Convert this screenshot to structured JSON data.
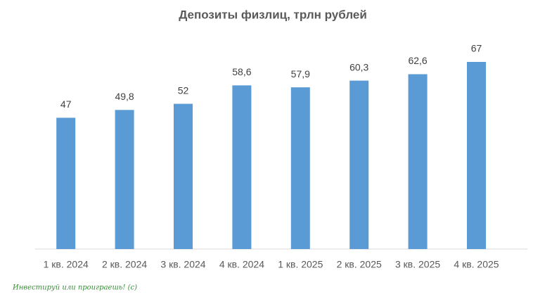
{
  "chart_data": {
    "type": "bar",
    "title": "Депозиты физлиц, трлн рублей",
    "categories": [
      "1 кв. 2024",
      "2 кв. 2024",
      "3 кв. 2024",
      "4 кв. 2024",
      "1 кв. 2025",
      "2 кв. 2025",
      "3 кв. 2025",
      "4 кв. 2025"
    ],
    "values": [
      47,
      49.8,
      52,
      58.6,
      57.9,
      60.3,
      62.6,
      67
    ],
    "value_labels": [
      "47",
      "49,8",
      "52",
      "58,6",
      "57,9",
      "60,3",
      "62,6",
      "67"
    ],
    "color": "#5b9bd5",
    "annotation": "Инвестируй или проиграешь! (с)"
  }
}
